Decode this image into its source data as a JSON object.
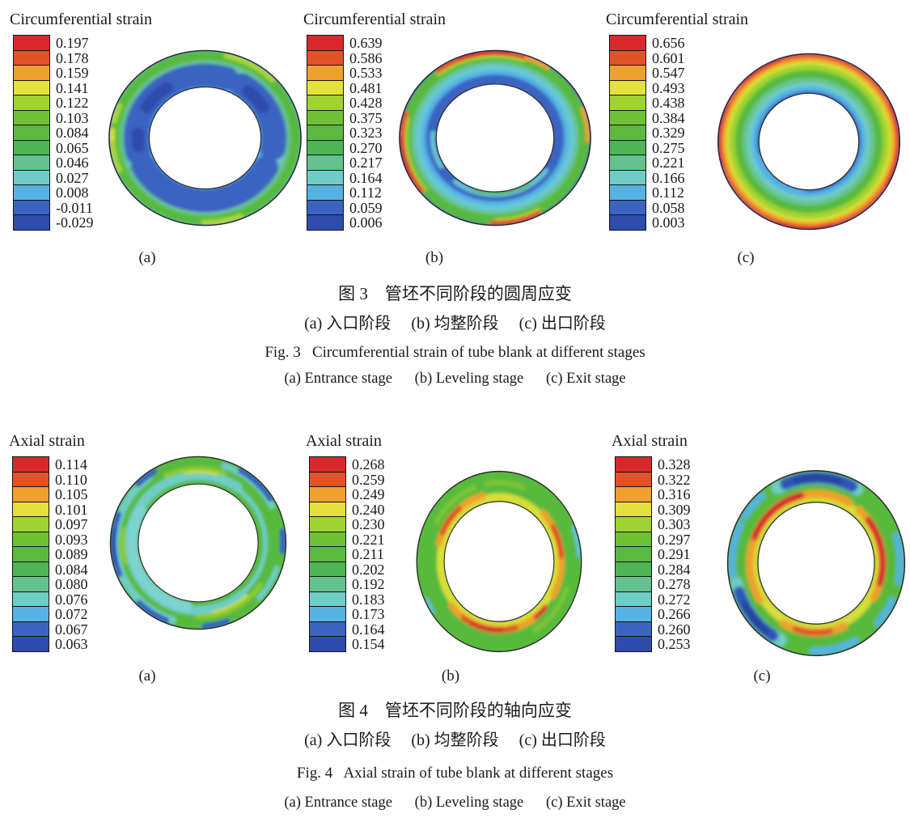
{
  "palette": [
    "#d9292d",
    "#e2522a",
    "#f0a02c",
    "#e3e13a",
    "#9fd331",
    "#6ec133",
    "#5cb93f",
    "#4eb455",
    "#63c28e",
    "#6fcdc5",
    "#55b3e4",
    "#3b63c1",
    "#2d4cae"
  ],
  "figures": [
    {
      "caption_zh": "图 3　管坯不同阶段的圆周应变",
      "caption_zh_sub": "(a) 入口阶段　 (b) 均整阶段　 (c) 出口阶段",
      "caption_en": "Fig. 3   Circumferential strain of tube blank at different stages",
      "caption_en_sub": "(a) Entrance stage      (b) Leveling stage      (c) Exit stage",
      "panels": [
        {
          "label": "(a)",
          "stage_name": "Entrance stage",
          "legend_title": "Circumferential strain",
          "values": [
            "0.197",
            "0.178",
            "0.159",
            "0.141",
            "0.122",
            "0.103",
            "0.084",
            "0.065",
            "0.046",
            "0.027",
            "0.008",
            "-0.011",
            "-0.029"
          ]
        },
        {
          "label": "(b)",
          "stage_name": "Leveling stage",
          "legend_title": "Circumferential strain",
          "values": [
            "0.639",
            "0.586",
            "0.533",
            "0.481",
            "0.428",
            "0.375",
            "0.323",
            "0.270",
            "0.217",
            "0.164",
            "0.112",
            "0.059",
            "0.006"
          ]
        },
        {
          "label": "(c)",
          "stage_name": "Exit stage",
          "legend_title": "Circumferential strain",
          "values": [
            "0.656",
            "0.601",
            "0.547",
            "0.493",
            "0.438",
            "0.384",
            "0.329",
            "0.275",
            "0.221",
            "0.166",
            "0.112",
            "0.058",
            "0.003"
          ]
        }
      ]
    },
    {
      "caption_zh": "图 4　管坯不同阶段的轴向应变",
      "caption_zh_sub": "(a) 入口阶段　 (b) 均整阶段　 (c) 出口阶段",
      "caption_en": "Fig. 4   Axial strain of tube blank at different stages",
      "caption_en_sub": "(a) Entrance stage      (b) Leveling stage      (c) Exit stage",
      "panels": [
        {
          "label": "(a)",
          "stage_name": "Entrance stage",
          "legend_title": "Axial strain",
          "values": [
            "0.114",
            "0.110",
            "0.105",
            "0.101",
            "0.097",
            "0.093",
            "0.089",
            "0.084",
            "0.080",
            "0.076",
            "0.072",
            "0.067",
            "0.063"
          ]
        },
        {
          "label": "(b)",
          "stage_name": "Leveling stage",
          "legend_title": "Axial strain",
          "values": [
            "0.268",
            "0.259",
            "0.249",
            "0.240",
            "0.230",
            "0.221",
            "0.211",
            "0.202",
            "0.192",
            "0.183",
            "0.173",
            "0.164",
            "0.154"
          ]
        },
        {
          "label": "(c)",
          "stage_name": "Exit stage",
          "legend_title": "Axial strain",
          "values": [
            "0.328",
            "0.322",
            "0.316",
            "0.309",
            "0.303",
            "0.297",
            "0.291",
            "0.284",
            "0.278",
            "0.272",
            "0.266",
            "0.260",
            "0.253"
          ]
        }
      ]
    }
  ]
}
